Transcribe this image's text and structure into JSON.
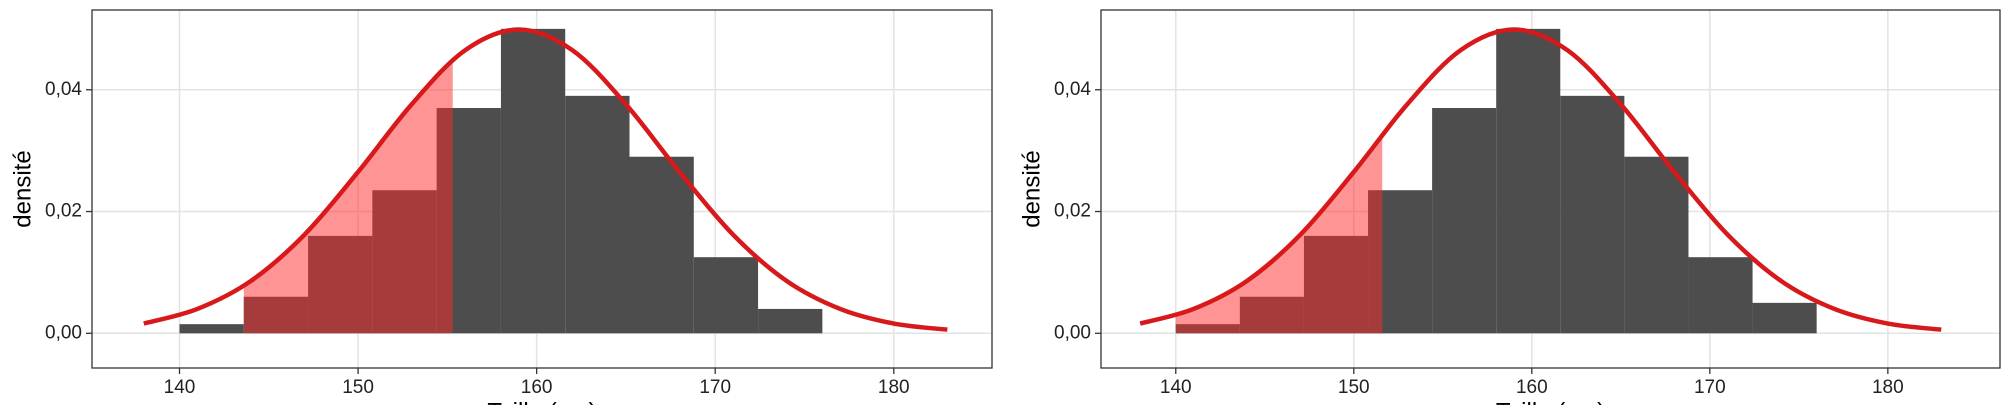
{
  "chart_data": [
    {
      "type": "histogram",
      "x_label": "Taille (cm)",
      "y_label": "densité",
      "bins": [
        140,
        143.6,
        147.2,
        150.8,
        154.4,
        158,
        161.6,
        165.2,
        168.8,
        172.4,
        176
      ],
      "values": [
        0.0015,
        0.006,
        0.016,
        0.0235,
        0.037,
        0.05,
        0.039,
        0.029,
        0.0125,
        0.004
      ],
      "color": "#4d4d4d",
      "curve": {
        "x": [
          138,
          141,
          144,
          147,
          150,
          153,
          156,
          159,
          162,
          165,
          168,
          171,
          174,
          177,
          180,
          183
        ],
        "y": [
          0.0016,
          0.004,
          0.0086,
          0.0162,
          0.0265,
          0.0376,
          0.0465,
          0.0499,
          0.0465,
          0.0376,
          0.0265,
          0.0162,
          0.0086,
          0.004,
          0.0016,
          0.0006
        ],
        "color": "#d7191c"
      },
      "shade_range": [
        143.6,
        155.3
      ],
      "shade_color": "#ff2a2a",
      "xlim": [
        135.1,
        185.5
      ],
      "ylim": [
        -0.0057,
        0.0531
      ],
      "xticks": [
        140,
        150,
        160,
        170,
        180
      ],
      "yticks": [
        {
          "value": 0,
          "label": "0,00"
        },
        {
          "value": 0.02,
          "label": "0,02"
        },
        {
          "value": 0.04,
          "label": "0,04"
        }
      ],
      "grid": true
    },
    {
      "type": "histogram",
      "x_label": "Taille (cm)",
      "y_label": "densité",
      "bins": [
        140,
        143.6,
        147.2,
        150.8,
        154.4,
        158,
        161.6,
        165.2,
        168.8,
        172.4,
        176
      ],
      "values": [
        0.0015,
        0.006,
        0.016,
        0.0235,
        0.037,
        0.05,
        0.039,
        0.029,
        0.0125,
        0.005
      ],
      "color": "#4d4d4d",
      "curve": {
        "x": [
          138,
          141,
          144,
          147,
          150,
          153,
          156,
          159,
          162,
          165,
          168,
          171,
          174,
          177,
          180,
          183
        ],
        "y": [
          0.0016,
          0.004,
          0.0086,
          0.0162,
          0.0265,
          0.0376,
          0.0465,
          0.0499,
          0.0465,
          0.0376,
          0.0265,
          0.0162,
          0.0086,
          0.004,
          0.0016,
          0.0006
        ],
        "color": "#d7191c"
      },
      "shade_range": [
        140,
        151.6
      ],
      "shade_color": "#ff2a2a",
      "xlim": [
        135.8,
        186.3
      ],
      "ylim": [
        -0.0057,
        0.0531
      ],
      "xticks": [
        140,
        150,
        160,
        170,
        180
      ],
      "yticks": [
        {
          "value": 0,
          "label": "0,00"
        },
        {
          "value": 0.02,
          "label": "0,02"
        },
        {
          "value": 0.04,
          "label": "0,04"
        }
      ],
      "grid": true
    }
  ]
}
